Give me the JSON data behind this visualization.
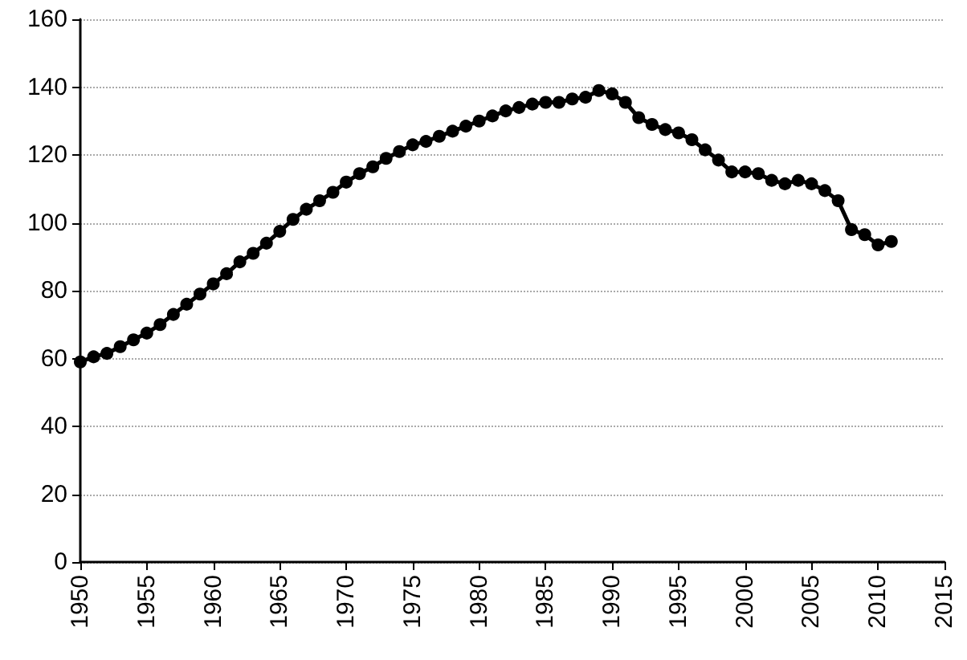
{
  "chart_data": {
    "type": "line",
    "x": [
      1950,
      1951,
      1952,
      1953,
      1954,
      1955,
      1956,
      1957,
      1958,
      1959,
      1960,
      1961,
      1962,
      1963,
      1964,
      1965,
      1966,
      1967,
      1968,
      1969,
      1970,
      1971,
      1972,
      1973,
      1974,
      1975,
      1976,
      1977,
      1978,
      1979,
      1980,
      1981,
      1982,
      1983,
      1984,
      1985,
      1986,
      1987,
      1988,
      1989,
      1990,
      1991,
      1992,
      1993,
      1994,
      1995,
      1996,
      1997,
      1998,
      1999,
      2000,
      2001,
      2002,
      2003,
      2004,
      2005,
      2006,
      2007,
      2008,
      2009,
      2010,
      2011
    ],
    "series": [
      {
        "color": "#000000",
        "values": [
          59,
          60.5,
          61.5,
          63.5,
          65.5,
          67.5,
          70,
          73,
          76,
          79,
          82,
          85,
          88.5,
          91,
          94,
          97.5,
          101,
          104,
          106.5,
          109,
          112,
          114.5,
          116.5,
          119,
          121,
          123,
          124,
          125.5,
          127,
          128.5,
          130,
          131.5,
          133,
          134,
          135,
          135.5,
          135.5,
          136.5,
          137,
          139,
          138,
          135.5,
          131,
          129,
          127.5,
          126.5,
          124.5,
          121.5,
          118.5,
          115,
          115,
          114.5,
          112.5,
          111.5,
          112.5,
          111.5,
          109.5,
          106.5,
          98,
          96.5,
          93.5,
          94.5
        ]
      }
    ],
    "xlim": [
      1950,
      2015
    ],
    "xticks": [
      1950,
      1955,
      1960,
      1965,
      1970,
      1975,
      1980,
      1985,
      1990,
      1995,
      2000,
      2005,
      2010,
      2015
    ],
    "ylim": [
      0,
      160
    ],
    "yticks": [
      0,
      20,
      40,
      60,
      80,
      100,
      120,
      140,
      160
    ],
    "grid": "y",
    "marker": "circle",
    "line_style": "solid"
  }
}
